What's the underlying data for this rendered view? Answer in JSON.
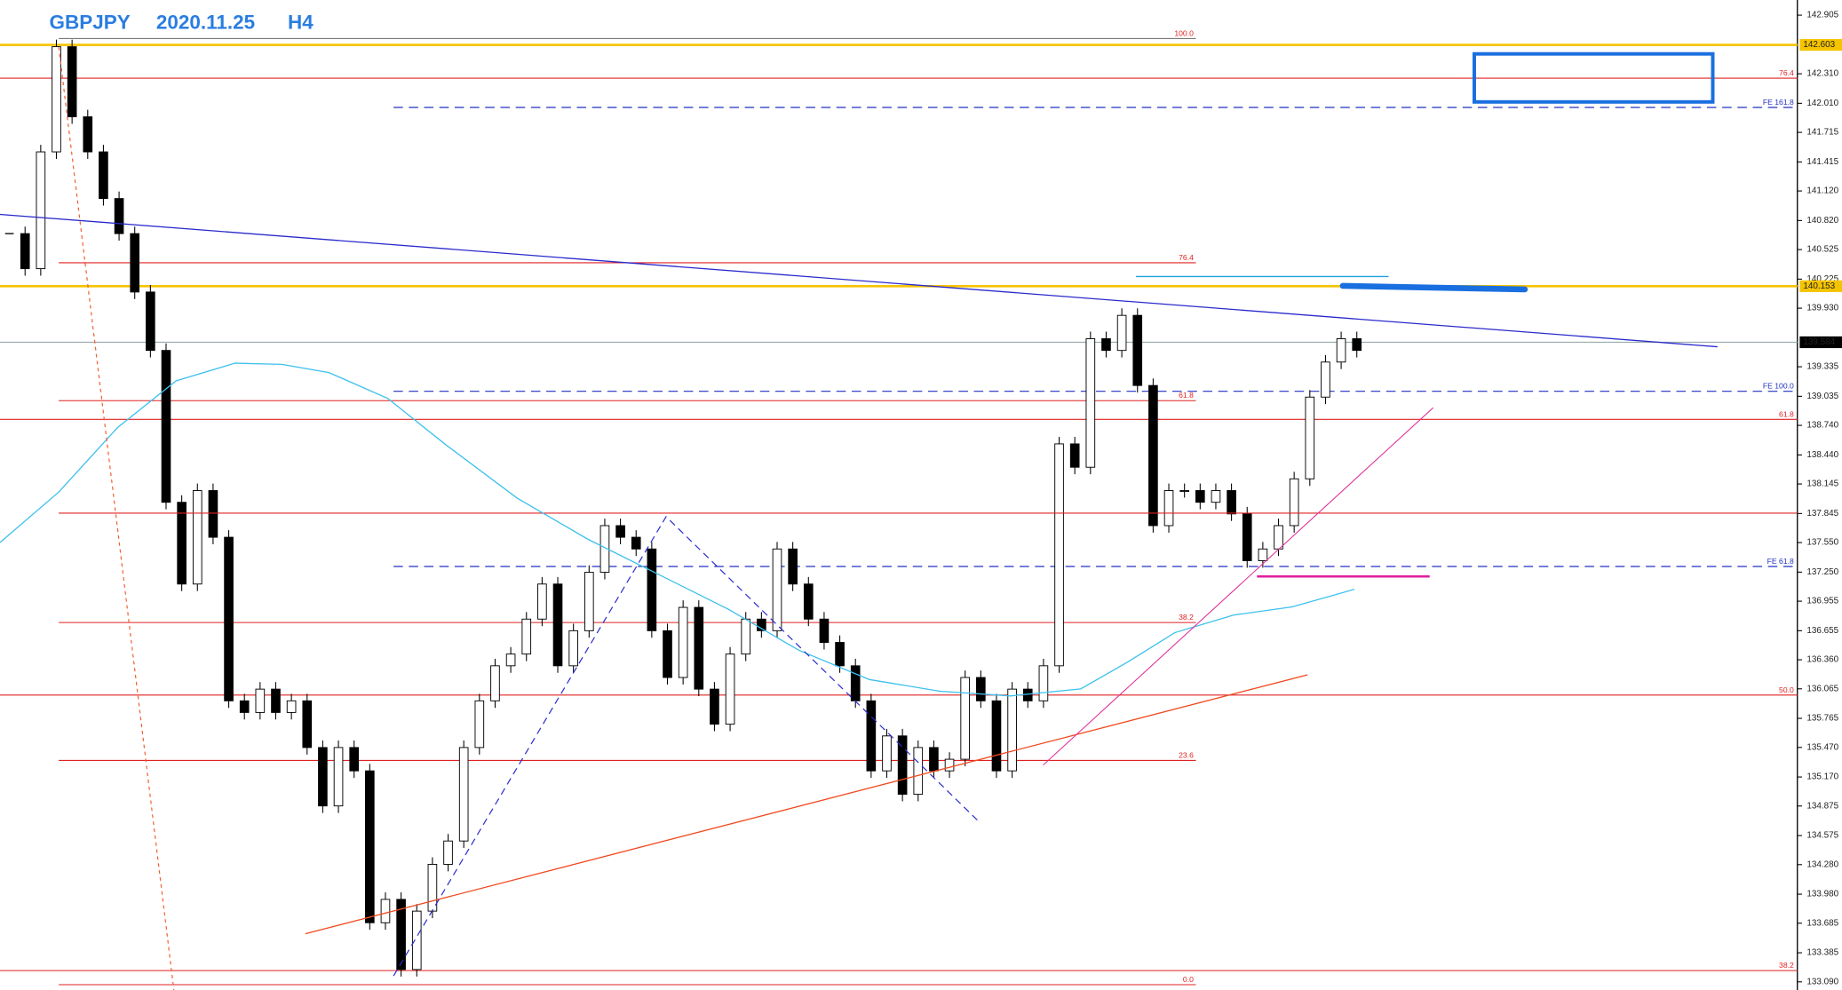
{
  "chart_data": {
    "type": "candlestick",
    "symbol": "GBPJPY",
    "date": "2020.11.25",
    "timeframe": "H4",
    "close": [
      140.687,
      140.331,
      141.517,
      142.585,
      141.873,
      141.517,
      141.043,
      140.687,
      140.094,
      139.501,
      137.959,
      137.129,
      138.078,
      137.604,
      135.943,
      135.825,
      136.062,
      135.825,
      135.943,
      135.469,
      134.876,
      135.469,
      135.232,
      133.69,
      133.927,
      133.215,
      133.808,
      134.283,
      134.52,
      135.469,
      135.943,
      136.299,
      136.418,
      136.773,
      137.129,
      136.299,
      136.655,
      137.248,
      137.722,
      137.604,
      137.485,
      136.655,
      136.18,
      136.892,
      136.062,
      135.706,
      136.418,
      136.773,
      136.655,
      137.485,
      137.129,
      136.773,
      136.536,
      136.299,
      135.943,
      135.232,
      135.587,
      134.994,
      135.469,
      135.232,
      135.35,
      136.18,
      135.943,
      135.232,
      136.062,
      135.943,
      136.299,
      138.552,
      138.315,
      139.62,
      139.501,
      139.857,
      139.145,
      137.722,
      138.078,
      138.078,
      137.959,
      138.078,
      137.841,
      137.366,
      137.485,
      137.722,
      138.197,
      139.027,
      139.383,
      139.62,
      139.501
    ],
    "up_color": "#ffffff",
    "down_color": "#000000",
    "ylim": [
      133.007,
      143.059
    ],
    "yticks": [
      142.905,
      {
        "value": 142.31,
        "label": "142.310"
      },
      {
        "value": 142.01,
        "label": "142.010"
      },
      141.715,
      141.415,
      {
        "value": 141.12,
        "label": "141.120"
      },
      {
        "value": 140.82,
        "label": "140.820"
      },
      140.525,
      140.225,
      {
        "value": 139.93,
        "label": "139.930"
      },
      139.335,
      139.035,
      {
        "value": 138.74,
        "label": "138.740"
      },
      {
        "value": 138.44,
        "label": "138.440"
      },
      138.145,
      137.845,
      {
        "value": 137.55,
        "label": "137.550"
      },
      {
        "value": 137.25,
        "label": "137.250"
      },
      136.955,
      136.655,
      {
        "value": 136.36,
        "label": "136.360"
      },
      136.065,
      135.765,
      {
        "value": 135.47,
        "label": "135.470"
      },
      {
        "value": 135.17,
        "label": "135.170"
      },
      134.875,
      134.575,
      {
        "value": 134.28,
        "label": "134.280"
      },
      {
        "value": 133.98,
        "label": "133.980"
      },
      133.685,
      133.385,
      {
        "value": 133.09,
        "label": "133.090"
      }
    ],
    "current_price": 139.584,
    "key_levels": [
      142.603,
      140.153
    ],
    "key_color": "#f5c400",
    "fibo_left": [
      {
        "value": 142.668,
        "label": "100.0"
      },
      {
        "value": 140.391,
        "label": "76.4"
      },
      {
        "value": 138.991,
        "label": "61.8"
      },
      {
        "value": 136.738,
        "label": "38.2"
      },
      {
        "value": 135.338,
        "label": "23.6"
      },
      {
        "value": 133.061,
        "label": "0.0"
      }
    ],
    "fibo_right": [
      {
        "value": 142.265,
        "label": "76.4"
      },
      {
        "value": 138.801,
        "label": "61.8"
      },
      {
        "value": 136.002,
        "label": "50.0"
      },
      {
        "value": 133.204,
        "label": "38.2"
      }
    ],
    "fibo_color": "#e02020",
    "fe_levels": [
      {
        "value": 141.968,
        "label": "FE 161.8"
      },
      {
        "value": 139.086,
        "label": "FE 100.0"
      },
      {
        "value": 137.307,
        "label": "FE 61.8"
      }
    ],
    "fe_color": "#2030c0"
  }
}
